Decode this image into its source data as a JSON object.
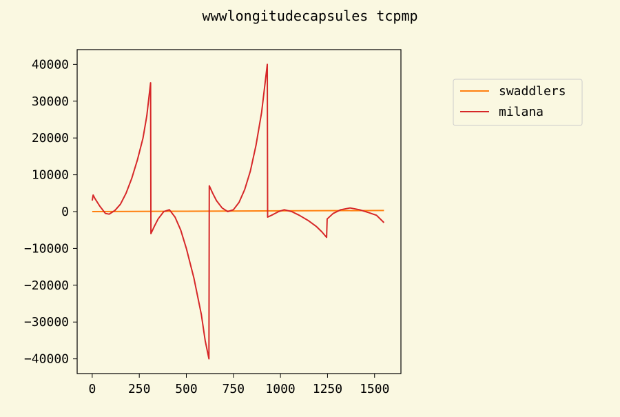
{
  "chart_data": {
    "type": "line",
    "title": "wwwlongitudecapsules tcpmp",
    "xlabel": "",
    "ylabel": "",
    "xlim": [
      -80,
      1640
    ],
    "ylim": [
      -44000,
      44000
    ],
    "xticks": [
      0,
      250,
      500,
      750,
      1000,
      1250,
      1500
    ],
    "yticks": [
      -40000,
      -30000,
      -20000,
      -10000,
      0,
      10000,
      20000,
      30000,
      40000
    ],
    "grid": false,
    "legend_position": "outside-right",
    "series": [
      {
        "name": "swaddlers",
        "color": "#ff7f0e",
        "points": [
          [
            0,
            0
          ],
          [
            500,
            100
          ],
          [
            1000,
            200
          ],
          [
            1550,
            300
          ]
        ]
      },
      {
        "name": "milana",
        "color": "#d62728",
        "points": [
          [
            0,
            3000
          ],
          [
            5,
            4500
          ],
          [
            15,
            3500
          ],
          [
            40,
            1500
          ],
          [
            70,
            -500
          ],
          [
            90,
            -700
          ],
          [
            120,
            300
          ],
          [
            150,
            2000
          ],
          [
            180,
            5000
          ],
          [
            210,
            9000
          ],
          [
            240,
            14000
          ],
          [
            270,
            20000
          ],
          [
            290,
            26000
          ],
          [
            310,
            35000
          ],
          [
            312,
            -6000
          ],
          [
            330,
            -4000
          ],
          [
            350,
            -2000
          ],
          [
            380,
            0
          ],
          [
            410,
            500
          ],
          [
            440,
            -1500
          ],
          [
            470,
            -5000
          ],
          [
            500,
            -10000
          ],
          [
            540,
            -18000
          ],
          [
            580,
            -28000
          ],
          [
            600,
            -35000
          ],
          [
            620,
            -40000
          ],
          [
            622,
            7000
          ],
          [
            640,
            5000
          ],
          [
            660,
            3000
          ],
          [
            690,
            1000
          ],
          [
            720,
            0
          ],
          [
            750,
            500
          ],
          [
            780,
            2500
          ],
          [
            810,
            6000
          ],
          [
            840,
            11000
          ],
          [
            870,
            18000
          ],
          [
            900,
            27000
          ],
          [
            930,
            40000
          ],
          [
            932,
            -1500
          ],
          [
            960,
            -800
          ],
          [
            990,
            0
          ],
          [
            1020,
            500
          ],
          [
            1060,
            0
          ],
          [
            1100,
            -1000
          ],
          [
            1150,
            -2500
          ],
          [
            1190,
            -4000
          ],
          [
            1220,
            -5500
          ],
          [
            1245,
            -7000
          ],
          [
            1248,
            -2000
          ],
          [
            1280,
            -500
          ],
          [
            1320,
            500
          ],
          [
            1370,
            1000
          ],
          [
            1420,
            500
          ],
          [
            1470,
            -300
          ],
          [
            1510,
            -1000
          ],
          [
            1550,
            -3000
          ]
        ]
      }
    ]
  }
}
